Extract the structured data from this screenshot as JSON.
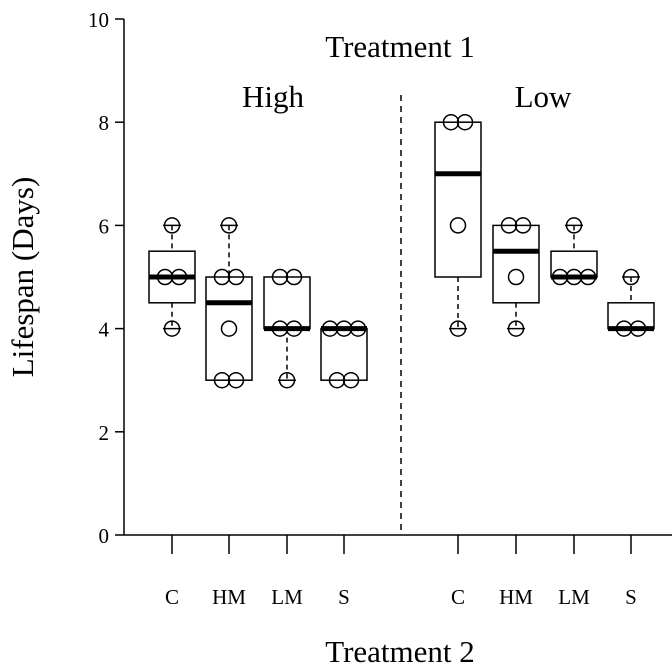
{
  "chart_data": {
    "type": "box",
    "title": "Treatment 1",
    "xlabel": "Treatment 2",
    "ylabel": "Lifespan (Days)",
    "ylim": [
      0,
      10
    ],
    "yticks": [
      0,
      2,
      4,
      6,
      8,
      10
    ],
    "panels": [
      {
        "label": "High",
        "groups": [
          {
            "name": "C",
            "q1": 4.5,
            "median": 5.0,
            "q3": 5.5,
            "whisker_low": 4,
            "whisker_high": 6,
            "points": [
              4,
              5,
              5,
              6
            ]
          },
          {
            "name": "HM",
            "q1": 3.0,
            "median": 4.5,
            "q3": 5.0,
            "whisker_low": 3,
            "whisker_high": 6,
            "points": [
              3,
              3,
              4,
              5,
              5,
              6
            ]
          },
          {
            "name": "LM",
            "q1": 4.0,
            "median": 4.0,
            "q3": 5.0,
            "whisker_low": 3,
            "whisker_high": 5,
            "points": [
              3,
              4,
              4,
              5,
              5
            ]
          },
          {
            "name": "S",
            "q1": 3.0,
            "median": 4.0,
            "q3": 4.0,
            "whisker_low": 3,
            "whisker_high": 4,
            "points": [
              3,
              3,
              4,
              4,
              4
            ]
          }
        ]
      },
      {
        "label": "Low",
        "groups": [
          {
            "name": "C",
            "q1": 5.0,
            "median": 7.0,
            "q3": 8.0,
            "whisker_low": 4,
            "whisker_high": 8,
            "points": [
              4,
              6,
              8,
              8
            ]
          },
          {
            "name": "HM",
            "q1": 4.5,
            "median": 5.5,
            "q3": 6.0,
            "whisker_low": 4,
            "whisker_high": 6,
            "points": [
              4,
              5,
              6,
              6
            ]
          },
          {
            "name": "LM",
            "q1": 5.0,
            "median": 5.0,
            "q3": 5.5,
            "whisker_low": 5,
            "whisker_high": 6,
            "points": [
              5,
              5,
              5,
              6
            ]
          },
          {
            "name": "S",
            "q1": 4.0,
            "median": 4.0,
            "q3": 4.5,
            "whisker_low": 4,
            "whisker_high": 5,
            "points": [
              4,
              4,
              5
            ]
          }
        ]
      }
    ],
    "divider": "dashed vertical line between panels",
    "grid": false,
    "legend": "none"
  }
}
